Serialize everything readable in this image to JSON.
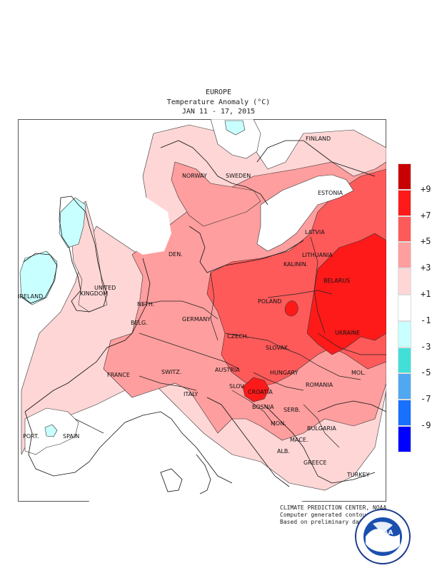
{
  "header": {
    "region": "EUROPE",
    "title": "Temperature Anomaly (°C)",
    "period": "JAN 11 - 17, 2015"
  },
  "legend": {
    "colors": [
      "#c80000",
      "#ff1a1a",
      "#ff5a5a",
      "#ff9e9e",
      "#ffd6d6",
      "#ffffff",
      "#c8ffff",
      "#40e0d8",
      "#50a8f0",
      "#1870ff",
      "#0000ff"
    ],
    "labels": [
      "+9",
      "+7",
      "+5",
      "+3",
      "+1",
      "-1",
      "-3",
      "-5",
      "-7",
      "-9"
    ]
  },
  "countries": {
    "finland": "FINLAND",
    "norway": "NORWAY",
    "sweden": "SWEDEN",
    "estonia": "ESTONIA",
    "latvia": "LATVIA",
    "lithuania": "LITHUANIA",
    "kalinin": "KALININ.",
    "den": "DEN.",
    "united": "UNITED",
    "kingdom": "KINGDOM",
    "ireland": "IRELAND",
    "neth": "NETH.",
    "belg": "BELG.",
    "germany": "GERMANY",
    "poland": "POLAND",
    "belarus": "BELARUS",
    "czech": "CZECH.",
    "ukraine": "UKRAINE",
    "slovak": "SLOVAK.",
    "france": "FRANCE",
    "switz": "SWITZ.",
    "austria": "AUSTRIA",
    "hungary": "HUNGARY",
    "mol": "MOL.",
    "romania": "ROMANIA",
    "slov": "SLOV.",
    "croatia": "CROATIA",
    "italy": "ITALY",
    "bosnia": "BOSNIA",
    "serb": "SERB.",
    "mon": "MON.",
    "bulgaria": "BULGARIA",
    "port": "PORT.",
    "spain": "SPAIN",
    "mace": "MACE.",
    "alb": "ALB.",
    "greece": "GREECE",
    "turkey": "TURKEY"
  },
  "credits": {
    "line1": "CLIMATE PREDICTION CENTER, NOAA",
    "line2": "Computer generated contours",
    "line3": "Based on preliminary data"
  },
  "logo": {
    "text": "NOAA"
  }
}
